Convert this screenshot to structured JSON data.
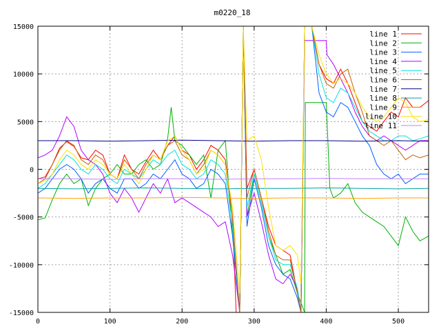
{
  "chart_data": {
    "type": "line",
    "title": "m0220_18",
    "xlim": [
      0,
      542
    ],
    "ylim": [
      -15000,
      15000
    ],
    "x_ticks": [
      0,
      100,
      200,
      300,
      400,
      500
    ],
    "y_ticks": [
      -15000,
      -10000,
      -5000,
      0,
      5000,
      10000,
      15000
    ],
    "grid": true,
    "legend_position": "top-right",
    "series": [
      {
        "name": "line 1",
        "color": "#ff0000",
        "x": [
          0,
          10,
          20,
          30,
          40,
          50,
          60,
          70,
          80,
          90,
          100,
          110,
          120,
          130,
          140,
          150,
          160,
          170,
          180,
          190,
          200,
          210,
          220,
          230,
          240,
          250,
          260,
          270,
          275,
          280,
          285,
          290,
          300,
          310,
          320,
          330,
          340,
          350,
          360,
          365,
          370,
          380,
          390,
          400,
          410,
          420,
          430,
          440,
          450,
          460,
          470,
          480,
          490,
          500,
          510,
          520,
          530,
          542
        ],
        "y": [
          -1000,
          -800,
          500,
          2200,
          2900,
          2400,
          1200,
          1000,
          2000,
          1500,
          -500,
          -1000,
          1500,
          0,
          -500,
          800,
          2000,
          1000,
          2500,
          3500,
          2000,
          1500,
          0,
          1000,
          2500,
          2000,
          1000,
          -5000,
          -15000,
          -15000,
          15000,
          -2000,
          0,
          -3000,
          -6000,
          -8000,
          -8500,
          -9000,
          -13000,
          -15000,
          15000,
          15000,
          11000,
          9500,
          9000,
          10500,
          9000,
          7000,
          5000,
          4500,
          4000,
          5000,
          6000,
          5500,
          7500,
          6500,
          6500,
          7200
        ]
      },
      {
        "name": "line 2",
        "color": "#00b000",
        "x": [
          0,
          10,
          20,
          30,
          40,
          50,
          60,
          70,
          80,
          90,
          100,
          110,
          120,
          130,
          140,
          150,
          160,
          170,
          180,
          185,
          190,
          200,
          210,
          220,
          230,
          240,
          250,
          260,
          270,
          280,
          285,
          290,
          300,
          310,
          320,
          330,
          340,
          350,
          360,
          370,
          371,
          400,
          405,
          410,
          420,
          430,
          440,
          450,
          460,
          470,
          480,
          490,
          500,
          510,
          520,
          530,
          542
        ],
        "y": [
          -5300,
          -5100,
          -3200,
          -1500,
          -500,
          -1500,
          -1000,
          -3800,
          -2000,
          -1000,
          -500,
          500,
          -500,
          -500,
          500,
          1000,
          0,
          500,
          3200,
          6500,
          3000,
          2500,
          1500,
          500,
          1500,
          -3000,
          2000,
          3000,
          -7000,
          -15000,
          15000,
          -5000,
          -500,
          -3500,
          -7000,
          -9000,
          -11000,
          -10500,
          -13000,
          -15000,
          7000,
          7000,
          -2000,
          -3000,
          -2500,
          -1500,
          -3500,
          -4500,
          -5000,
          -5500,
          -6000,
          -7000,
          -8000,
          -5000,
          -6500,
          -7500,
          -7000
        ]
      },
      {
        "name": "line 3",
        "color": "#0060ff",
        "x": [
          0,
          10,
          20,
          30,
          40,
          50,
          60,
          70,
          80,
          90,
          100,
          110,
          120,
          130,
          140,
          150,
          160,
          170,
          180,
          190,
          200,
          210,
          220,
          230,
          240,
          250,
          260,
          270,
          280,
          285,
          290,
          300,
          310,
          320,
          330,
          340,
          350,
          360,
          365,
          370,
          380,
          390,
          400,
          410,
          420,
          430,
          440,
          450,
          460,
          470,
          480,
          490,
          500,
          510,
          520,
          530,
          542
        ],
        "y": [
          -2500,
          -2000,
          -1000,
          0,
          500,
          0,
          -1000,
          -2500,
          -1500,
          -1000,
          -2000,
          -2500,
          -1000,
          -1000,
          -2000,
          -1500,
          -500,
          -1000,
          0,
          1000,
          -500,
          -1000,
          -2000,
          -1500,
          0,
          -500,
          -1500,
          -7000,
          -15000,
          15000,
          -6000,
          -1000,
          -4000,
          -8000,
          -10000,
          -11000,
          -11500,
          -13500,
          -15000,
          15000,
          15000,
          8000,
          6000,
          5500,
          7000,
          6500,
          5000,
          3500,
          2500,
          500,
          -500,
          -1000,
          -500,
          -1500,
          -1000,
          -500,
          -500
        ]
      },
      {
        "name": "line 4",
        "color": "#b000ff",
        "x": [
          0,
          10,
          20,
          30,
          40,
          50,
          60,
          70,
          80,
          90,
          100,
          110,
          120,
          130,
          140,
          150,
          160,
          170,
          180,
          190,
          200,
          210,
          220,
          230,
          240,
          250,
          260,
          270,
          280,
          285,
          290,
          300,
          310,
          320,
          330,
          340,
          350,
          360,
          365,
          370,
          400,
          401,
          410,
          420,
          430,
          440,
          450,
          460,
          470,
          480,
          490,
          500,
          510,
          520,
          530,
          542
        ],
        "y": [
          1200,
          1500,
          2000,
          3500,
          5500,
          4500,
          2000,
          1000,
          500,
          -500,
          -2500,
          -3500,
          -2000,
          -3000,
          -4500,
          -3000,
          -1500,
          -2500,
          -1000,
          -3500,
          -3000,
          -3500,
          -4000,
          -4500,
          -5000,
          -6000,
          -5500,
          -9000,
          -15000,
          15000,
          -5000,
          -2500,
          -5500,
          -9000,
          -11500,
          -12000,
          -11000,
          -12500,
          -15000,
          13500,
          13500,
          12000,
          11000,
          9500,
          8000,
          6000,
          4500,
          3500,
          3000,
          3500,
          3000,
          2500,
          2000,
          2500,
          3000,
          3000
        ]
      },
      {
        "name": "line 5",
        "color": "#00e0e0",
        "x": [
          0,
          10,
          20,
          30,
          40,
          50,
          60,
          70,
          80,
          90,
          100,
          110,
          120,
          130,
          140,
          150,
          160,
          170,
          180,
          190,
          200,
          210,
          220,
          230,
          240,
          250,
          260,
          270,
          280,
          285,
          290,
          300,
          310,
          320,
          330,
          340,
          350,
          360,
          365,
          370,
          380,
          390,
          400,
          410,
          420,
          430,
          440,
          450,
          460,
          470,
          480,
          490,
          500,
          510,
          520,
          530,
          542
        ],
        "y": [
          -2000,
          -1500,
          -500,
          500,
          1500,
          1000,
          0,
          -500,
          500,
          0,
          -1000,
          -1500,
          0,
          -500,
          -1000,
          0,
          1000,
          500,
          1500,
          2000,
          500,
          0,
          -1000,
          -500,
          1000,
          500,
          -500,
          -6000,
          -15000,
          15000,
          -4000,
          -500,
          -3500,
          -7000,
          -9500,
          -10000,
          -10000,
          -12500,
          -15000,
          15000,
          15000,
          10000,
          7500,
          7000,
          8500,
          8000,
          6500,
          5000,
          4000,
          3500,
          3000,
          3000,
          3500,
          3500,
          3000,
          3200,
          3500
        ]
      },
      {
        "name": "line 6",
        "color": "#c06000",
        "x": [
          0,
          10,
          20,
          30,
          40,
          50,
          60,
          70,
          80,
          90,
          100,
          110,
          120,
          130,
          140,
          150,
          160,
          170,
          180,
          190,
          200,
          210,
          220,
          230,
          240,
          250,
          260,
          270,
          280,
          285,
          290,
          300,
          310,
          320,
          330,
          340,
          350,
          360,
          365,
          370,
          380,
          390,
          400,
          410,
          420,
          430,
          440,
          450,
          460,
          470,
          480,
          490,
          500,
          510,
          520,
          530,
          542
        ],
        "y": [
          -1500,
          -1000,
          500,
          2000,
          3000,
          2500,
          1000,
          500,
          1500,
          1000,
          -500,
          -1000,
          1000,
          0,
          -1000,
          500,
          1500,
          1000,
          2500,
          3000,
          1500,
          1000,
          -500,
          500,
          2000,
          1500,
          500,
          -5000,
          -15000,
          15000,
          -3000,
          0,
          -3000,
          -6500,
          -9000,
          -9500,
          -9500,
          -13000,
          -15000,
          15000,
          15000,
          11000,
          9000,
          8500,
          10000,
          10500,
          8000,
          6000,
          3500,
          3000,
          2500,
          3000,
          2000,
          1000,
          1500,
          1200,
          1500
        ]
      },
      {
        "name": "line 7",
        "color": "#000080",
        "x": [
          0,
          50,
          100,
          150,
          200,
          250,
          300,
          350,
          400,
          450,
          500,
          542
        ],
        "y": [
          3000,
          3000,
          2950,
          3000,
          3050,
          3000,
          2950,
          3000,
          3000,
          2950,
          3000,
          2950
        ]
      },
      {
        "name": "line 8",
        "color": "#00a0a0",
        "x": [
          0,
          50,
          100,
          150,
          200,
          250,
          300,
          350,
          400,
          450,
          500,
          542
        ],
        "y": [
          -2000,
          -2050,
          -2000,
          -1950,
          -2000,
          -2050,
          -2000,
          -2000,
          -1950,
          -2000,
          -2050,
          -2000
        ]
      },
      {
        "name": "line 9",
        "color": "#ffa000",
        "x": [
          0,
          50,
          100,
          150,
          200,
          250,
          300,
          350,
          400,
          450,
          500,
          542
        ],
        "y": [
          -3000,
          -3050,
          -3000,
          -3000,
          -2950,
          -3000,
          -3050,
          -3000,
          -3000,
          -3050,
          -3000,
          -3000
        ]
      },
      {
        "name": "line 10",
        "color": "#ffe000",
        "x": [
          0,
          10,
          20,
          30,
          40,
          50,
          60,
          70,
          80,
          90,
          100,
          110,
          120,
          130,
          140,
          150,
          160,
          170,
          180,
          190,
          200,
          210,
          220,
          230,
          240,
          250,
          260,
          270,
          280,
          285,
          290,
          300,
          310,
          320,
          330,
          340,
          350,
          360,
          365,
          370,
          380,
          390,
          400,
          410,
          420,
          430,
          440,
          450,
          460,
          470,
          480,
          490,
          500,
          510,
          520,
          530,
          542
        ],
        "y": [
          -1500,
          -1200,
          -500,
          1000,
          2000,
          1500,
          500,
          0,
          1000,
          500,
          -500,
          -1000,
          500,
          -500,
          -1500,
          0,
          1500,
          1000,
          3000,
          3500,
          2000,
          1000,
          -500,
          0,
          2000,
          1500,
          500,
          -4000,
          -13000,
          15000,
          3000,
          3500,
          1000,
          -4000,
          -8000,
          -8500,
          -8000,
          -9000,
          -12000,
          15000,
          15000,
          12000,
          10000,
          9000,
          9500,
          9000,
          8000,
          6500,
          5500,
          5000,
          5500,
          6500,
          7500,
          7000,
          5500,
          5000,
          5200
        ]
      },
      {
        "name": "line 11",
        "color": "#c080ff",
        "x": [
          0,
          50,
          100,
          150,
          200,
          250,
          300,
          350,
          400,
          450,
          500,
          542
        ],
        "y": [
          -1000,
          -1000,
          -1050,
          -1000,
          -1000,
          -1050,
          -1000,
          -1000,
          -950,
          -1000,
          -1000,
          -1000
        ]
      }
    ]
  }
}
